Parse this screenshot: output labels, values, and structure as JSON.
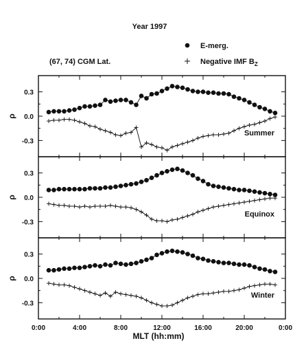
{
  "title": "Year 1997",
  "subtitle": "(67, 74) CGM Lat.",
  "legend": {
    "emerg_label": "E-merg.",
    "imf_label_main": "Negative IMF B",
    "imf_label_sub": "Z"
  },
  "chart_data": {
    "type": "line",
    "xlabel": "MLT (hh:mm)",
    "ylabel": "ρ",
    "x_ticks": [
      "0:00",
      "4:00",
      "8:00",
      "12:00",
      "16:00",
      "20:00",
      "0:00"
    ],
    "xlim": [
      0,
      24
    ],
    "y_ticks": [
      "0.3",
      "0.0",
      "-0.3"
    ],
    "ylim": [
      -0.5,
      0.5
    ],
    "x": [
      1.0,
      1.5,
      2.0,
      2.5,
      3.0,
      3.5,
      4.0,
      4.5,
      5.0,
      5.5,
      6.0,
      6.5,
      7.0,
      7.5,
      8.0,
      8.5,
      9.0,
      9.5,
      10.0,
      10.5,
      11.0,
      11.5,
      12.0,
      12.5,
      13.0,
      13.5,
      14.0,
      14.5,
      15.0,
      15.5,
      16.0,
      16.5,
      17.0,
      17.5,
      18.0,
      18.5,
      19.0,
      19.5,
      20.0,
      20.5,
      21.0,
      21.5,
      22.0,
      22.5,
      23.0
    ],
    "panels": [
      {
        "name": "Summer",
        "series": [
          {
            "name": "E-merg.",
            "marker": "circle",
            "values": [
              0.05,
              0.06,
              0.06,
              0.06,
              0.07,
              0.08,
              0.1,
              0.12,
              0.12,
              0.13,
              0.14,
              0.2,
              0.18,
              0.19,
              0.2,
              0.2,
              0.17,
              0.14,
              0.25,
              0.22,
              0.27,
              0.28,
              0.31,
              0.34,
              0.37,
              0.36,
              0.35,
              0.33,
              0.31,
              0.3,
              0.3,
              0.29,
              0.29,
              0.28,
              0.28,
              0.27,
              0.24,
              0.22,
              0.2,
              0.17,
              0.14,
              0.11,
              0.09,
              0.06,
              0.04
            ]
          },
          {
            "name": "Negative IMF Bz",
            "marker": "plus",
            "values": [
              -0.06,
              -0.05,
              -0.05,
              -0.04,
              -0.04,
              -0.05,
              -0.07,
              -0.09,
              -0.12,
              -0.13,
              -0.16,
              -0.18,
              -0.2,
              -0.23,
              -0.24,
              -0.21,
              -0.2,
              -0.14,
              -0.38,
              -0.33,
              -0.35,
              -0.38,
              -0.39,
              -0.42,
              -0.38,
              -0.36,
              -0.34,
              -0.32,
              -0.3,
              -0.27,
              -0.25,
              -0.24,
              -0.23,
              -0.23,
              -0.22,
              -0.21,
              -0.18,
              -0.15,
              -0.13,
              -0.11,
              -0.1,
              -0.08,
              -0.06,
              -0.03,
              -0.01
            ]
          }
        ]
      },
      {
        "name": "Equinox",
        "series": [
          {
            "name": "E-merg.",
            "marker": "circle",
            "values": [
              0.09,
              0.09,
              0.1,
              0.1,
              0.1,
              0.1,
              0.1,
              0.1,
              0.11,
              0.11,
              0.11,
              0.12,
              0.12,
              0.13,
              0.14,
              0.15,
              0.16,
              0.17,
              0.19,
              0.21,
              0.24,
              0.27,
              0.3,
              0.32,
              0.34,
              0.35,
              0.33,
              0.3,
              0.27,
              0.23,
              0.2,
              0.16,
              0.14,
              0.13,
              0.12,
              0.11,
              0.1,
              0.09,
              0.09,
              0.08,
              0.07,
              0.06,
              0.05,
              0.04,
              0.03
            ]
          },
          {
            "name": "Negative IMF Bz",
            "marker": "plus",
            "values": [
              -0.08,
              -0.09,
              -0.1,
              -0.1,
              -0.11,
              -0.11,
              -0.12,
              -0.11,
              -0.12,
              -0.11,
              -0.11,
              -0.11,
              -0.1,
              -0.11,
              -0.12,
              -0.12,
              -0.13,
              -0.15,
              -0.18,
              -0.22,
              -0.27,
              -0.29,
              -0.29,
              -0.3,
              -0.28,
              -0.27,
              -0.25,
              -0.23,
              -0.21,
              -0.18,
              -0.16,
              -0.14,
              -0.12,
              -0.11,
              -0.1,
              -0.09,
              -0.08,
              -0.07,
              -0.06,
              -0.05,
              -0.04,
              -0.03,
              -0.02,
              -0.01,
              -0.01
            ]
          }
        ]
      },
      {
        "name": "Winter",
        "series": [
          {
            "name": "E-merg.",
            "marker": "circle",
            "values": [
              0.1,
              0.1,
              0.11,
              0.12,
              0.12,
              0.13,
              0.13,
              0.14,
              0.15,
              0.16,
              0.15,
              0.17,
              0.16,
              0.19,
              0.18,
              0.17,
              0.18,
              0.19,
              0.21,
              0.23,
              0.25,
              0.29,
              0.31,
              0.33,
              0.34,
              0.33,
              0.32,
              0.3,
              0.28,
              0.25,
              0.24,
              0.22,
              0.21,
              0.2,
              0.19,
              0.19,
              0.18,
              0.17,
              0.17,
              0.16,
              0.14,
              0.12,
              0.11,
              0.09,
              0.08
            ]
          },
          {
            "name": "Negative IMF Bz",
            "marker": "plus",
            "values": [
              -0.06,
              -0.07,
              -0.08,
              -0.08,
              -0.09,
              -0.11,
              -0.13,
              -0.15,
              -0.17,
              -0.19,
              -0.21,
              -0.18,
              -0.22,
              -0.17,
              -0.19,
              -0.2,
              -0.21,
              -0.22,
              -0.24,
              -0.27,
              -0.3,
              -0.32,
              -0.34,
              -0.34,
              -0.33,
              -0.3,
              -0.27,
              -0.24,
              -0.22,
              -0.2,
              -0.19,
              -0.19,
              -0.18,
              -0.17,
              -0.16,
              -0.16,
              -0.15,
              -0.14,
              -0.12,
              -0.1,
              -0.09,
              -0.08,
              -0.07,
              -0.07,
              -0.08
            ]
          }
        ]
      }
    ]
  }
}
